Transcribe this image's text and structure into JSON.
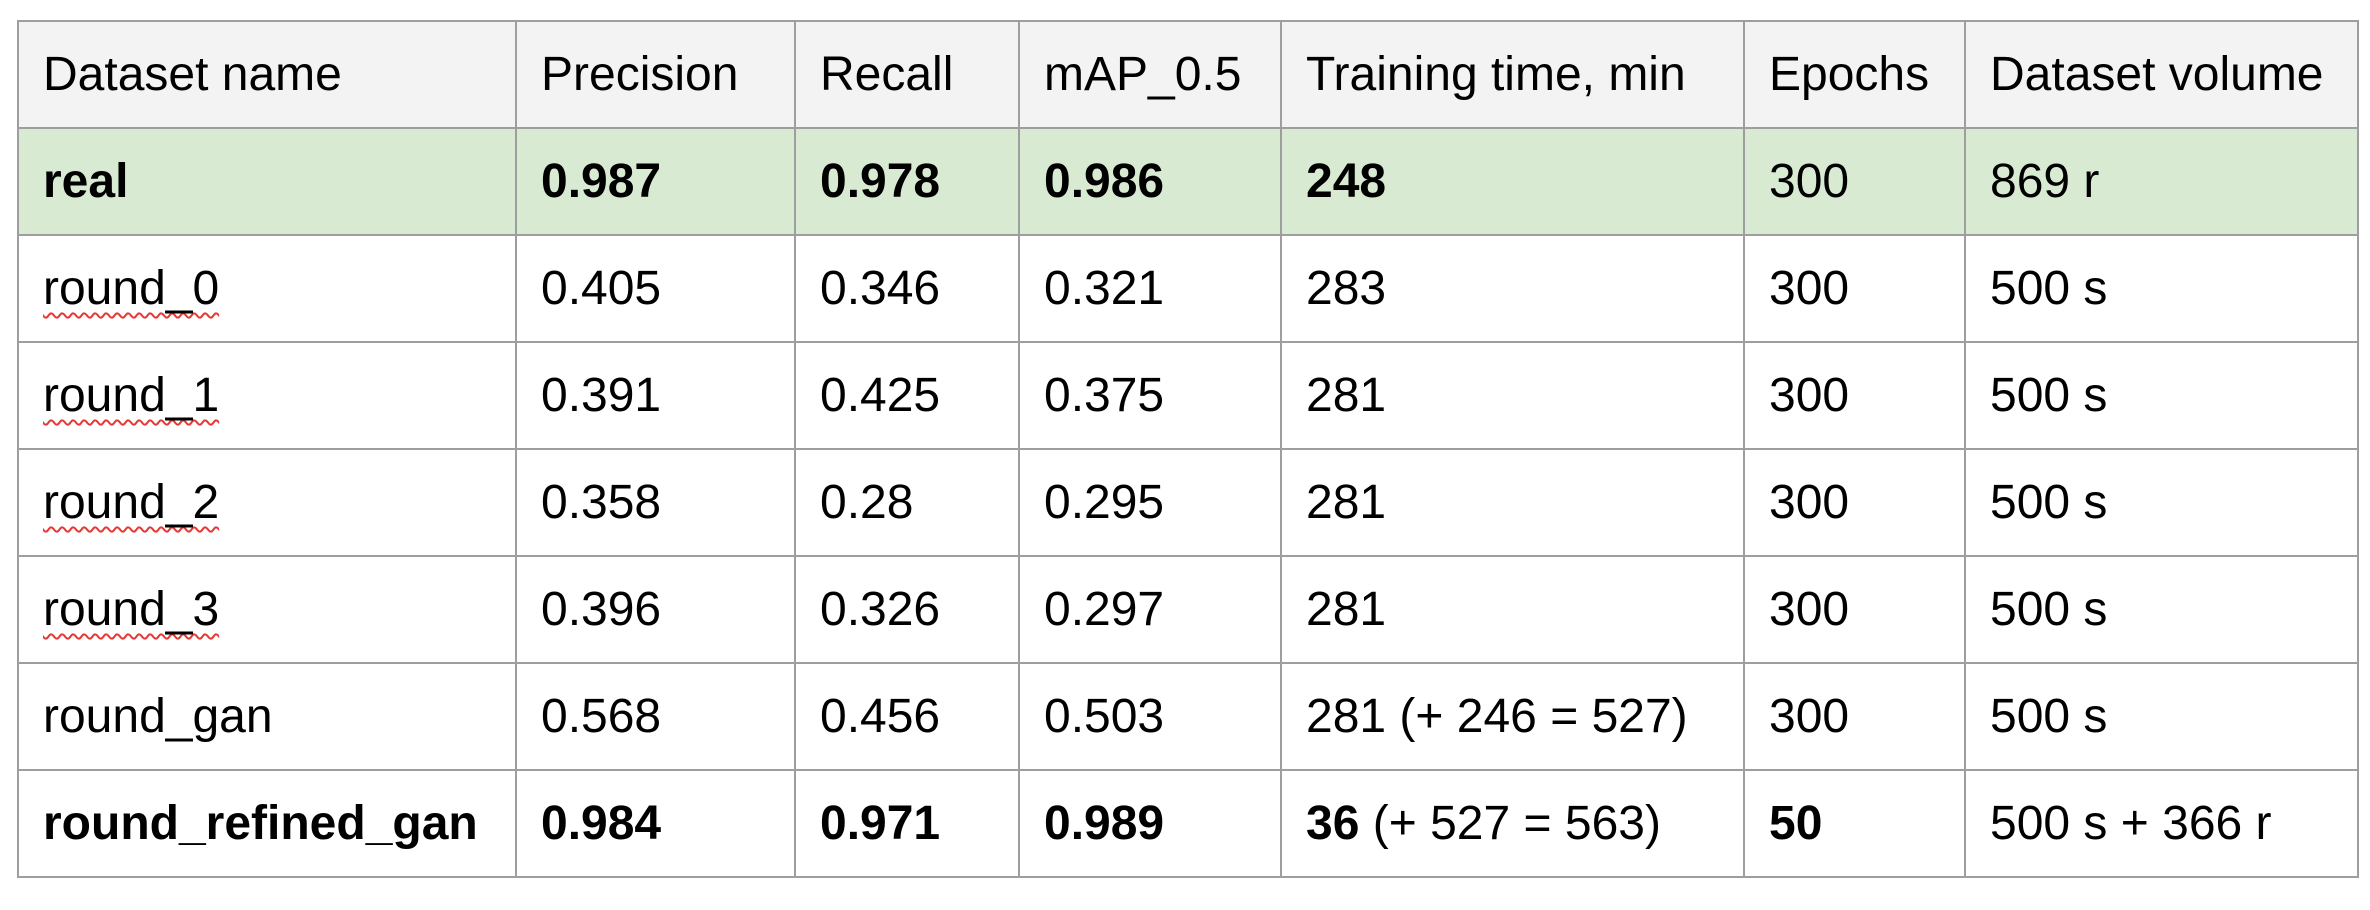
{
  "headers": [
    "Dataset name",
    "Precision",
    "Recall",
    "mAP_0.5",
    "Training time, min",
    "Epochs",
    "Dataset volume"
  ],
  "rows": [
    {
      "name": "real",
      "precision": "0.987",
      "recall": "0.978",
      "map": "0.986",
      "time": "248",
      "time_extra": "",
      "epochs": "300",
      "volume": "869 r"
    },
    {
      "name": "round_0",
      "precision": "0.405",
      "recall": "0.346",
      "map": "0.321",
      "time": "283",
      "time_extra": "",
      "epochs": "300",
      "volume": "500 s"
    },
    {
      "name": "round_1",
      "precision": "0.391",
      "recall": "0.425",
      "map": "0.375",
      "time": "281",
      "time_extra": "",
      "epochs": "300",
      "volume": "500 s"
    },
    {
      "name": "round_2",
      "precision": "0.358",
      "recall": "0.28",
      "map": "0.295",
      "time": "281",
      "time_extra": "",
      "epochs": "300",
      "volume": "500 s"
    },
    {
      "name": "round_3",
      "precision": "0.396",
      "recall": "0.326",
      "map": "0.297",
      "time": "281",
      "time_extra": "",
      "epochs": "300",
      "volume": "500 s"
    },
    {
      "name": "round_gan",
      "precision": "0.568",
      "recall": "0.456",
      "map": "0.503",
      "time": "281",
      "time_extra": " (+ 246 = 527)",
      "epochs": "300",
      "volume": "500 s"
    },
    {
      "name": "round_refined_gan",
      "precision": "0.984",
      "recall": "0.971",
      "map": "0.989",
      "time": "36",
      "time_extra": " (+ 527 = 563)",
      "epochs": "50",
      "volume": "500 s + 366 r"
    }
  ],
  "colors": {
    "highlight_row": "#d9ead3",
    "header_bg": "#f3f3f3",
    "border": "#9e9e9e",
    "spellcheck": "#e53935"
  }
}
